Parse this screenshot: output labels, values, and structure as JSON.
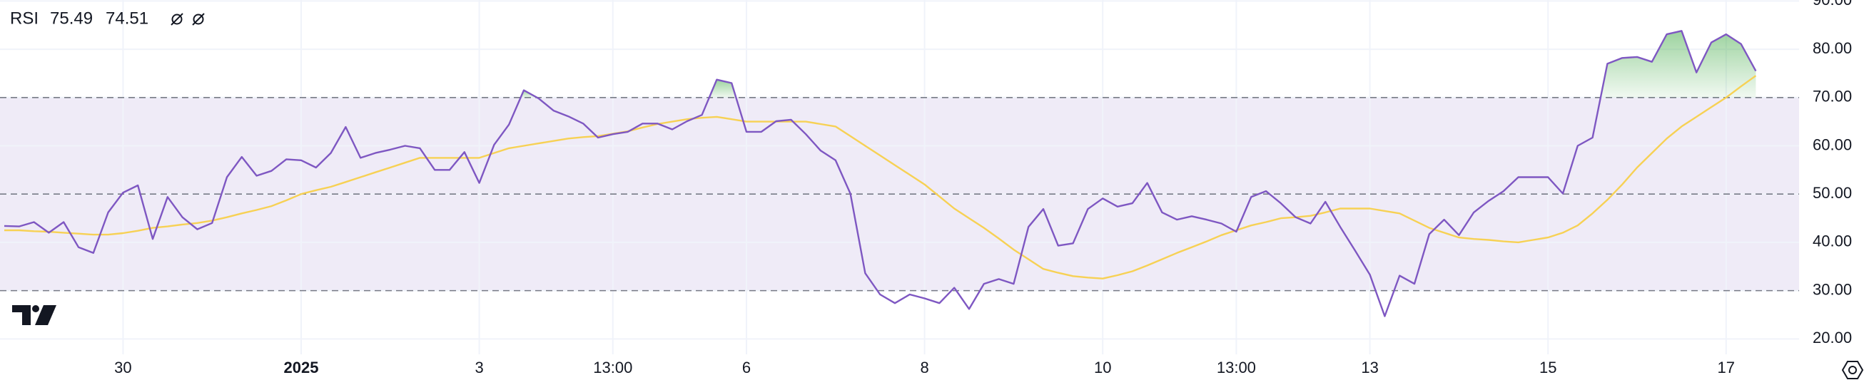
{
  "chart_data": {
    "type": "line",
    "title": "RSI",
    "categories": [
      null,
      null,
      null,
      null,
      null,
      null,
      null,
      null,
      "30",
      null,
      null,
      null,
      null,
      null,
      null,
      null,
      null,
      null,
      null,
      null,
      "2025",
      null,
      null,
      null,
      null,
      null,
      null,
      null,
      null,
      null,
      null,
      null,
      "3",
      null,
      null,
      null,
      null,
      null,
      null,
      null,
      null,
      "13:00",
      null,
      null,
      null,
      null,
      null,
      null,
      null,
      null,
      "6",
      null,
      null,
      null,
      null,
      null,
      null,
      null,
      null,
      null,
      null,
      null,
      "8",
      null,
      null,
      null,
      null,
      null,
      null,
      null,
      null,
      null,
      null,
      null,
      "10",
      null,
      null,
      null,
      null,
      null,
      null,
      null,
      null,
      "13:00",
      null,
      null,
      null,
      null,
      null,
      null,
      null,
      null,
      "13",
      null,
      null,
      null,
      null,
      null,
      null,
      null,
      null,
      null,
      null,
      null,
      "15",
      null,
      null,
      null,
      null,
      null,
      null,
      null,
      null,
      null,
      null,
      null,
      "17",
      null,
      null
    ],
    "series": [
      {
        "color": "#7e57c2",
        "values": [
          43.4,
          43.3,
          44.2,
          42,
          44.2,
          39,
          37.8,
          46.2,
          50.3,
          51.8,
          40.7,
          49.4,
          45.2,
          42.7,
          44,
          53.5,
          57.7,
          53.8,
          54.8,
          57.2,
          57,
          55.5,
          58.5,
          63.9,
          57.5,
          58.5,
          59.2,
          60,
          59.5,
          55,
          55,
          58.7,
          52.3,
          60.2,
          64.4,
          71.5,
          69.8,
          67.3,
          66.1,
          64.6,
          61.7,
          62.4,
          62.9,
          64.6,
          64.6,
          63.4,
          65.1,
          66.4,
          73.7,
          73,
          62.9,
          62.9,
          65.1,
          65.4,
          62.4,
          59,
          57,
          50.1,
          33.6,
          29.2,
          27.4,
          29.2,
          28.4,
          27.4,
          30.6,
          26.2,
          31.4,
          32.4,
          31.4,
          43.2,
          46.9,
          39.3,
          39.8,
          46.9,
          49.1,
          47.4,
          48.1,
          52.3,
          46.2,
          44.7,
          45.4,
          44.7,
          43.9,
          42.2,
          49.4,
          50.6,
          48.1,
          45.2,
          43.9,
          48.4,
          43.2,
          38.3,
          33.3,
          24.7,
          33.1,
          31.4,
          41.7,
          44.7,
          41.5,
          46.2,
          48.6,
          50.6,
          53.5,
          53.5,
          53.5,
          50.1,
          60,
          61.7,
          77,
          78.2,
          78.4,
          77.4,
          83.1,
          83.8,
          75.2,
          81.4,
          83.1,
          81.1,
          75.49
        ]
      },
      {
        "color": "#f7d154",
        "values": [
          42.5,
          42.5,
          42.3,
          42.2,
          42,
          41.8,
          41.6,
          41.6,
          41.9,
          42.4,
          43,
          43.3,
          43.7,
          44,
          44.5,
          45.2,
          46,
          46.7,
          47.5,
          48.7,
          50,
          50.8,
          51.5,
          52.5,
          53.5,
          54.5,
          55.5,
          56.5,
          57.5,
          57.5,
          57.5,
          57.5,
          57.5,
          58.5,
          59.5,
          60,
          60.5,
          61,
          61.5,
          61.8,
          62,
          62.5,
          63,
          63.8,
          64.5,
          65,
          65.5,
          65.8,
          66,
          65.5,
          65,
          65,
          65,
          65,
          65,
          64.5,
          64,
          62,
          60,
          58,
          56,
          54,
          52,
          49.5,
          47,
          45,
          43,
          40.8,
          38.5,
          36.5,
          34.5,
          33.7,
          33,
          32.7,
          32.5,
          33.2,
          34,
          35.2,
          36.5,
          37.8,
          39,
          40.2,
          41.5,
          42.5,
          43.5,
          44.2,
          45,
          45.2,
          45.5,
          46.2,
          47,
          47,
          47,
          46.5,
          46,
          44.5,
          43,
          42,
          41,
          40.7,
          40.5,
          40.2,
          40,
          40.5,
          41,
          42,
          43.5,
          46,
          48.8,
          52,
          55.5,
          58.5,
          61.5,
          64,
          66,
          68,
          70,
          72.3,
          74.51
        ]
      }
    ],
    "ylim": [
      16.8,
      90.2
    ],
    "yticks": [
      {
        "value": 20,
        "label": "20.00"
      },
      {
        "value": 30,
        "label": "30.00"
      },
      {
        "value": 40,
        "label": "40.00"
      },
      {
        "value": 50,
        "label": "50.00"
      },
      {
        "value": 60,
        "label": "60.00"
      },
      {
        "value": 70,
        "label": "70.00"
      },
      {
        "value": 80,
        "label": "80.00"
      },
      {
        "value": 90,
        "label": "90.00"
      }
    ],
    "upper_band": 70,
    "middle_band": 50,
    "lower_band": 30,
    "band_color": "#efebf7",
    "overbought_color": "#4caf50",
    "grid": true
  }
}
